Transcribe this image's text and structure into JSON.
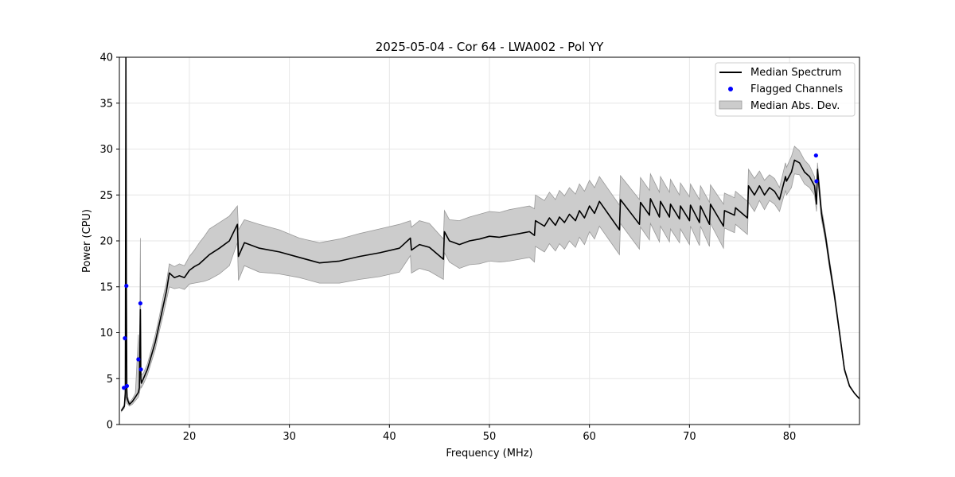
{
  "chart_data": {
    "type": "line",
    "title": "2025-05-04 - Cor 64 - LWA002 - Pol YY",
    "xlabel": "Frequency (MHz)",
    "ylabel": "Power (CPU)",
    "xlim": [
      13,
      87
    ],
    "ylim": [
      0,
      40
    ],
    "xticks": [
      20,
      30,
      40,
      50,
      60,
      70,
      80
    ],
    "yticks": [
      0,
      5,
      10,
      15,
      20,
      25,
      30,
      35,
      40
    ],
    "grid": true,
    "legend_position": "top-right",
    "legend": [
      "Median Spectrum",
      "Flagged Channels",
      "Median Abs. Dev."
    ],
    "colors": {
      "median": "#000000",
      "flagged": "#0000ff",
      "mad_fill": "#cccccc",
      "mad_edge": "#999999",
      "grid": "#e6e6e6"
    },
    "series": [
      {
        "name": "Median Spectrum",
        "x": [
          13.2,
          13.5,
          13.6,
          13.65,
          13.7,
          13.75,
          13.85,
          14.0,
          14.3,
          14.6,
          14.9,
          15.0,
          15.1,
          15.15,
          15.2,
          15.4,
          15.8,
          16.2,
          16.6,
          17.0,
          17.4,
          17.7,
          18.0,
          18.5,
          19.0,
          19.5,
          20.0,
          20.5,
          21.0,
          21.5,
          22.0,
          23.0,
          24.0,
          24.8,
          24.9,
          25.5,
          27,
          29,
          31,
          33,
          35,
          37,
          39,
          41,
          42.1,
          42.2,
          43,
          44,
          45.4,
          45.5,
          46,
          47,
          48,
          49,
          50,
          51,
          52,
          53,
          54,
          54.5,
          54.6,
          55.5,
          56,
          56.6,
          57,
          57.5,
          58,
          58.6,
          59,
          59.5,
          60,
          60.5,
          61,
          63,
          63.1,
          65,
          65.1,
          66,
          66.1,
          67,
          67.1,
          68,
          68.1,
          69,
          69.1,
          70,
          70.1,
          71,
          71.1,
          72,
          72.1,
          73.4,
          73.5,
          74.5,
          74.6,
          75.8,
          75.9,
          76.5,
          77,
          77.5,
          78,
          78.5,
          79,
          79.6,
          79.7,
          80.2,
          80.5,
          81,
          81.5,
          82,
          82.5,
          82.7,
          82.8,
          83.2,
          83.6,
          84.0,
          84.5,
          85.0,
          85.5,
          86.0,
          86.5,
          87.0
        ],
        "y": [
          1.5,
          2.0,
          3.5,
          40,
          14.5,
          3.0,
          2.6,
          2.2,
          2.5,
          3.0,
          3.5,
          4.0,
          12.5,
          5.0,
          4.5,
          5.0,
          6.0,
          7.5,
          9.0,
          11.0,
          13.0,
          14.5,
          16.5,
          16.0,
          16.2,
          16.0,
          16.8,
          17.2,
          17.5,
          18.0,
          18.5,
          19.2,
          20.0,
          21.8,
          18.3,
          19.8,
          19.2,
          18.8,
          18.2,
          17.6,
          17.8,
          18.3,
          18.7,
          19.2,
          20.3,
          19.0,
          19.6,
          19.3,
          18.0,
          21.0,
          20.0,
          19.6,
          20.0,
          20.2,
          20.5,
          20.4,
          20.6,
          20.8,
          21.0,
          20.6,
          22.2,
          21.6,
          22.5,
          21.7,
          22.6,
          22.0,
          22.9,
          22.2,
          23.3,
          22.5,
          23.8,
          23.0,
          24.3,
          21.2,
          24.5,
          21.8,
          24.2,
          22.8,
          24.6,
          22.6,
          24.3,
          22.6,
          24.0,
          22.4,
          23.8,
          22.2,
          23.9,
          22.0,
          23.8,
          21.8,
          24.0,
          21.6,
          23.3,
          22.8,
          23.6,
          22.5,
          26.0,
          25.0,
          26.0,
          25.0,
          25.8,
          25.4,
          24.5,
          27.0,
          26.5,
          27.5,
          28.8,
          28.5,
          27.5,
          27.0,
          26.0,
          24.0,
          27.8,
          23.0,
          20.5,
          17.5,
          14.0,
          10.0,
          6.0,
          4.2,
          3.4,
          2.8
        ]
      }
    ],
    "mad_band": {
      "name": "Median Abs. Dev.",
      "x": [
        13.2,
        13.5,
        13.6,
        13.65,
        13.7,
        13.75,
        13.85,
        14.0,
        14.3,
        14.6,
        14.9,
        15.0,
        15.1,
        15.15,
        15.2,
        15.4,
        15.8,
        16.2,
        16.6,
        17.0,
        17.4,
        17.7,
        18.0,
        18.5,
        19.0,
        19.5,
        20.0,
        20.5,
        21.0,
        21.5,
        22.0,
        23.0,
        24.0,
        24.8,
        24.9,
        25.5,
        27,
        29,
        31,
        33,
        35,
        37,
        39,
        41,
        42.1,
        42.2,
        43,
        44,
        45.4,
        45.5,
        46,
        47,
        48,
        49,
        50,
        51,
        52,
        53,
        54,
        54.5,
        54.6,
        55.5,
        56,
        56.6,
        57,
        57.5,
        58,
        58.6,
        59,
        59.5,
        60,
        60.5,
        61,
        63,
        63.1,
        65,
        65.1,
        66,
        66.1,
        67,
        67.1,
        68,
        68.1,
        69,
        69.1,
        70,
        70.1,
        71,
        71.1,
        72,
        72.1,
        73.4,
        73.5,
        74.5,
        74.6,
        75.8,
        75.9,
        76.5,
        77,
        77.5,
        78,
        78.5,
        79,
        79.6,
        79.7,
        80.2,
        80.5,
        81,
        81.5,
        82,
        82.5,
        82.7,
        82.8,
        83.2,
        83.6,
        84.0,
        84.5,
        85.0,
        85.5,
        86.0,
        86.5,
        87.0
      ],
      "upper": [
        1.6,
        2.2,
        4.5,
        25,
        15.5,
        4.0,
        3.0,
        2.4,
        2.8,
        3.4,
        9.8,
        5.0,
        20.3,
        6.0,
        5.4,
        5.6,
        6.6,
        8.2,
        9.8,
        11.8,
        14.0,
        15.5,
        17.5,
        17.2,
        17.5,
        17.3,
        18.3,
        19.0,
        19.8,
        20.5,
        21.3,
        22.0,
        22.7,
        23.8,
        21.2,
        22.3,
        21.8,
        21.2,
        20.3,
        19.8,
        20.2,
        20.8,
        21.3,
        21.8,
        22.2,
        21.5,
        22.2,
        21.9,
        20.2,
        23.3,
        22.3,
        22.2,
        22.6,
        22.9,
        23.2,
        23.1,
        23.4,
        23.6,
        23.8,
        23.5,
        25.0,
        24.4,
        25.3,
        24.5,
        25.5,
        24.9,
        25.8,
        25.1,
        26.2,
        25.4,
        26.6,
        25.8,
        27.0,
        23.9,
        27.1,
        24.5,
        26.9,
        25.5,
        27.3,
        25.3,
        27.0,
        25.3,
        26.7,
        25.0,
        26.3,
        24.8,
        26.2,
        24.5,
        26.0,
        24.2,
        26.1,
        24.0,
        25.2,
        24.7,
        25.4,
        24.3,
        27.8,
        26.8,
        27.6,
        26.6,
        27.2,
        26.8,
        25.8,
        28.5,
        28.0,
        29.2,
        30.3,
        29.8,
        28.8,
        28.2,
        27.0,
        24.8,
        28.5,
        23.7,
        21.0,
        18.0,
        14.4,
        10.3,
        6.2,
        4.3,
        3.4,
        2.8
      ],
      "lower": [
        1.4,
        1.8,
        2.8,
        3.0,
        2.5,
        2.3,
        2.2,
        2.0,
        2.2,
        2.6,
        3.0,
        3.4,
        4.0,
        4.2,
        4.0,
        4.4,
        5.4,
        6.8,
        8.2,
        10.2,
        12.0,
        13.5,
        15.0,
        14.8,
        14.9,
        14.7,
        15.3,
        15.4,
        15.5,
        15.6,
        15.8,
        16.4,
        17.3,
        19.8,
        15.7,
        17.3,
        16.6,
        16.4,
        16.0,
        15.4,
        15.4,
        15.8,
        16.1,
        16.6,
        18.4,
        16.5,
        17.0,
        16.7,
        15.8,
        18.7,
        17.7,
        17.0,
        17.4,
        17.5,
        17.8,
        17.7,
        17.8,
        18.0,
        18.2,
        17.7,
        19.4,
        18.8,
        19.7,
        18.9,
        19.7,
        19.1,
        20.0,
        19.3,
        20.4,
        19.6,
        21.0,
        20.2,
        21.6,
        18.5,
        21.9,
        19.1,
        21.5,
        20.1,
        21.9,
        19.9,
        21.6,
        19.9,
        21.3,
        19.8,
        21.3,
        19.6,
        21.6,
        19.5,
        21.6,
        19.4,
        21.9,
        19.2,
        21.4,
        20.9,
        21.8,
        20.7,
        24.2,
        23.2,
        24.4,
        23.4,
        24.4,
        24.0,
        23.2,
        25.5,
        25.0,
        25.8,
        27.3,
        27.2,
        26.2,
        25.8,
        25.0,
        23.2,
        27.1,
        22.3,
        20.0,
        17.0,
        13.6,
        9.7,
        5.8,
        4.1,
        3.4,
        2.8
      ]
    },
    "flagged": {
      "name": "Flagged Channels",
      "x": [
        13.45,
        13.55,
        13.7,
        13.75,
        14.9,
        15.1,
        15.15,
        82.65,
        82.7
      ],
      "y": [
        4.0,
        9.4,
        15.1,
        4.2,
        7.1,
        13.2,
        6.0,
        29.3,
        26.5
      ]
    }
  }
}
